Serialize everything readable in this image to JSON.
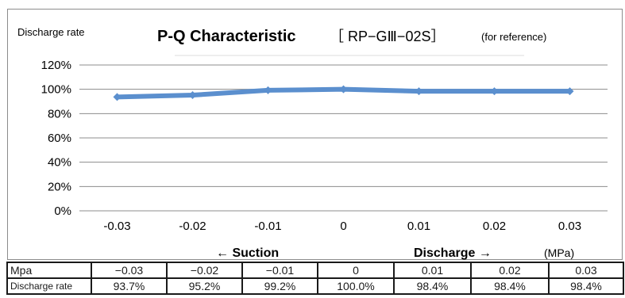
{
  "chart_data": {
    "type": "line",
    "title": "P-Q Characteristic",
    "model": "［ RP−GⅢ−02S］",
    "note": "(for reference)",
    "ylabel": "Discharge rate",
    "xunit": "(MPa)",
    "direction_labels": {
      "left": "← Suction",
      "right": "Discharge →"
    },
    "x": [
      -0.03,
      -0.02,
      -0.01,
      0,
      0.01,
      0.02,
      0.03
    ],
    "x_tick_labels": [
      "-0.03",
      "-0.02",
      "-0.01",
      "0",
      "0.01",
      "0.02",
      "0.03"
    ],
    "series": [
      {
        "values": [
          93.7,
          95.2,
          99.2,
          100.0,
          98.4,
          98.4,
          98.4
        ],
        "color": "#5b8fce"
      }
    ],
    "ylim": [
      0,
      120
    ],
    "y_ticks": [
      0,
      20,
      40,
      60,
      80,
      100,
      120
    ],
    "y_tick_labels": [
      "0%",
      "20%",
      "40%",
      "60%",
      "80%",
      "100%",
      "120%"
    ],
    "grid": true,
    "gridline_color": "#8c8c8c",
    "legend": "none"
  },
  "table": {
    "rows": [
      {
        "header": "Mpa",
        "cells": [
          "−0.03",
          "−0.02",
          "−0.01",
          "0",
          "0.01",
          "0.02",
          "0.03"
        ]
      },
      {
        "header": "Discharge rate",
        "cells": [
          "93.7%",
          "95.2%",
          "99.2%",
          "100.0%",
          "98.4%",
          "98.4%",
          "98.4%"
        ]
      }
    ]
  }
}
